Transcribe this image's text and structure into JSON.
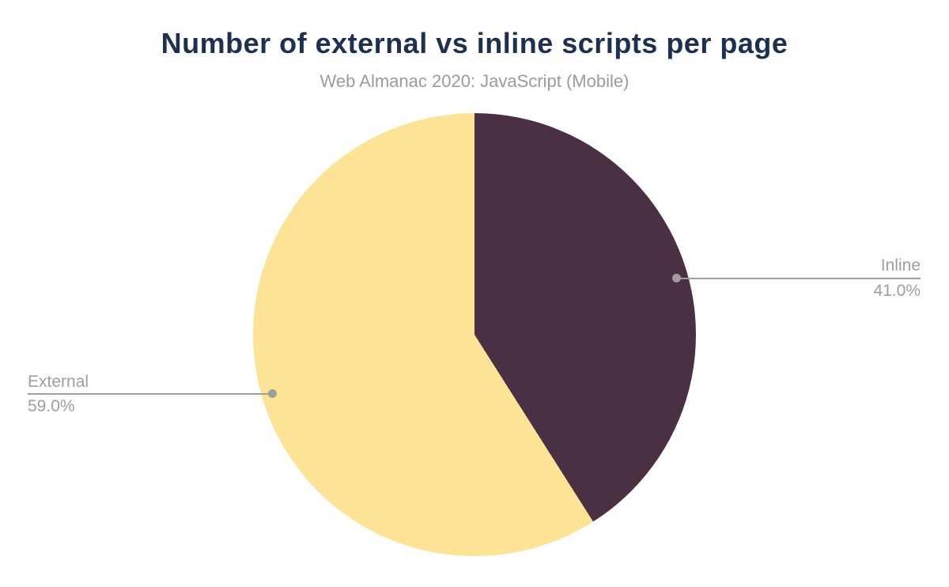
{
  "header": {
    "title": "Number of external vs inline scripts per page",
    "subtitle": "Web Almanac 2020: JavaScript (Mobile)"
  },
  "chart_data": {
    "type": "pie",
    "title": "Number of external vs inline scripts per page",
    "subtitle": "Web Almanac 2020: JavaScript (Mobile)",
    "unit": "%",
    "start_angle_deg": 0,
    "direction": "clockwise",
    "legend_position": "callout-labels",
    "background": "#ffffff",
    "slices": [
      {
        "label": "Inline",
        "value": 41.0,
        "display_value": "41.0%",
        "color": "#4a3043",
        "callout_side": "right"
      },
      {
        "label": "External",
        "value": 59.0,
        "display_value": "59.0%",
        "color": "#fce396",
        "callout_side": "left"
      }
    ],
    "colors": {
      "title": "#1e3050",
      "subtitle": "#9b9b9b",
      "label_text": "#9e9e9e",
      "callout_line": "#9e9e9e",
      "callout_dot": "#9e9e9e"
    }
  }
}
